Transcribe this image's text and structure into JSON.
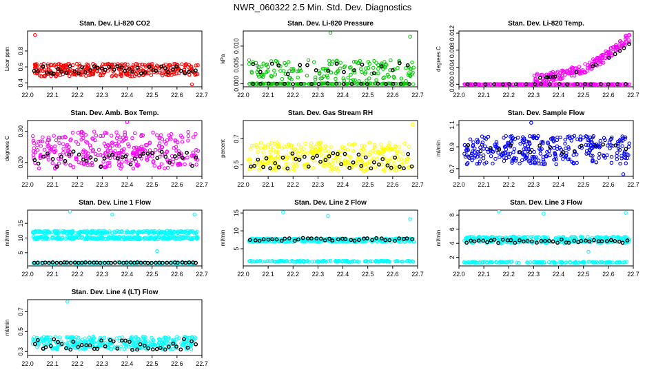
{
  "figure_title": "NWR_060322  2.5 Min. Std. Dev. Diagnostics",
  "chart_data": [
    {
      "id": "co2",
      "type": "scatter",
      "title": "Stan. Dev. Li-820 CO2",
      "ylabel": "Licor ppm",
      "color": "#ff0000",
      "xlim": [
        22.0,
        22.7
      ],
      "ylim": [
        0.35,
        1.05
      ],
      "xticks": [
        22.0,
        22.1,
        22.2,
        22.3,
        22.4,
        22.5,
        22.6,
        22.7
      ],
      "yticks": [
        {
          "v": 0.4,
          "label": "0.4"
        },
        {
          "v": 0.6,
          "label": "0.6"
        },
        {
          "v": 0.8,
          "label": "0.8"
        }
      ],
      "bands": [
        {
          "v": 0.56,
          "spread": 0.08,
          "n": 330
        }
      ],
      "trend": "flat",
      "outliers": [
        {
          "x": 22.03,
          "y": 1.0
        },
        {
          "x": 22.66,
          "y": 0.38
        }
      ],
      "dark": [
        {
          "y": 0.56,
          "spread": 0.05,
          "n": 42
        }
      ]
    },
    {
      "id": "pressure",
      "type": "scatter",
      "title": "Stan. Dev. Li-820 Pressure",
      "ylabel": "kPa",
      "color": "#00cc00",
      "xlim": [
        22.0,
        22.7
      ],
      "ylim": [
        -0.0008,
        0.014
      ],
      "xticks": [
        22.0,
        22.1,
        22.2,
        22.3,
        22.4,
        22.5,
        22.6,
        22.7
      ],
      "yticks": [
        {
          "v": 0.0,
          "label": "0.000"
        },
        {
          "v": 0.005,
          "label": "0.005"
        },
        {
          "v": 0.01,
          "label": "0.010"
        }
      ],
      "bands": [
        {
          "v": 0.0,
          "spread": 0.0001,
          "n": 170
        },
        {
          "v": 0.0035,
          "spread": 0.0028,
          "n": 160
        }
      ],
      "trend": "flat",
      "outliers": [
        {
          "x": 22.35,
          "y": 0.0135
        },
        {
          "x": 22.67,
          "y": 0.0125
        }
      ],
      "dark": [
        {
          "y": 0.0,
          "spread": 0.0001,
          "n": 20
        },
        {
          "y": 0.004,
          "spread": 0.0015,
          "n": 18
        }
      ]
    },
    {
      "id": "temp",
      "type": "scatter",
      "title": "Stan. Dev. Li-820 Temp.",
      "ylabel": "degrees C",
      "color": "#ff00ff",
      "xlim": [
        22.0,
        22.7
      ],
      "ylim": [
        -0.0006,
        0.0125
      ],
      "xticks": [
        22.0,
        22.1,
        22.2,
        22.3,
        22.4,
        22.5,
        22.6,
        22.7
      ],
      "yticks": [
        {
          "v": 0.0,
          "label": "0.000"
        },
        {
          "v": 0.004,
          "label": "0.004"
        },
        {
          "v": 0.008,
          "label": "0.008"
        },
        {
          "v": 0.012,
          "label": "0.012"
        }
      ],
      "bands": [
        {
          "v": 0.0,
          "spread": 5e-05,
          "n": 240
        }
      ],
      "trend": "rise",
      "outliers": [],
      "dark": [
        {
          "y": 0.0,
          "spread": 5e-05,
          "n": 20
        }
      ]
    },
    {
      "id": "ambbox",
      "type": "scatter",
      "title": "Stan. Dev. Amb. Box Temp.",
      "ylabel": "degrees C",
      "color": "#ff00ff",
      "xlim": [
        22.0,
        22.7
      ],
      "ylim": [
        0.155,
        0.335
      ],
      "xticks": [
        22.0,
        22.1,
        22.2,
        22.3,
        22.4,
        22.5,
        22.6,
        22.7
      ],
      "yticks": [
        {
          "v": 0.2,
          "label": "0.20"
        },
        {
          "v": 0.3,
          "label": "0.30"
        }
      ],
      "bands": [
        {
          "v": 0.24,
          "spread": 0.06,
          "n": 330
        }
      ],
      "trend": "flat",
      "outliers": [
        {
          "x": 22.4,
          "y": 0.33
        }
      ],
      "dark": [
        {
          "y": 0.21,
          "spread": 0.025,
          "n": 38
        }
      ]
    },
    {
      "id": "rh",
      "type": "scatter",
      "title": "Stan. Dev. Gas Stream RH",
      "ylabel": "percent",
      "color": "#ffff00",
      "xlim": [
        22.0,
        22.7
      ],
      "ylim": [
        0.41,
        0.84
      ],
      "xticks": [
        22.0,
        22.1,
        22.2,
        22.3,
        22.4,
        22.5,
        22.6,
        22.7
      ],
      "yticks": [
        {
          "v": 0.5,
          "label": "0.5"
        },
        {
          "v": 0.7,
          "label": "0.7"
        }
      ],
      "bands": [
        {
          "v": 0.56,
          "spread": 0.11,
          "n": 330
        }
      ],
      "trend": "flat",
      "outliers": [
        {
          "x": 22.68,
          "y": 0.81
        }
      ],
      "dark": [
        {
          "y": 0.53,
          "spread": 0.06,
          "n": 40
        }
      ]
    },
    {
      "id": "sample",
      "type": "scatter",
      "title": "Stan. Dev. Sample Flow",
      "ylabel": "ml/min",
      "color": "#0000ff",
      "xlim": [
        22.0,
        22.7
      ],
      "ylim": [
        0.63,
        1.14
      ],
      "xticks": [
        22.0,
        22.1,
        22.2,
        22.3,
        22.4,
        22.5,
        22.6,
        22.7
      ],
      "yticks": [
        {
          "v": 0.7,
          "label": "0.7"
        },
        {
          "v": 0.9,
          "label": "0.9"
        },
        {
          "v": 1.1,
          "label": "1.1"
        }
      ],
      "bands": [
        {
          "v": 0.87,
          "spread": 0.13,
          "n": 330
        }
      ],
      "trend": "flat",
      "outliers": [
        {
          "x": 22.29,
          "y": 1.12
        },
        {
          "x": 22.66,
          "y": 0.65
        }
      ],
      "dark": [
        {
          "y": 0.89,
          "spread": 0.04,
          "n": 16
        }
      ]
    },
    {
      "id": "line1",
      "type": "scatter",
      "title": "Stan. Dev. Line 1 Flow",
      "ylabel": "ml/min",
      "color": "#00ffff",
      "xlim": [
        22.0,
        22.7
      ],
      "ylim": [
        0.5,
        19.5
      ],
      "xticks": [
        22.0,
        22.1,
        22.2,
        22.3,
        22.4,
        22.5,
        22.6,
        22.7
      ],
      "yticks": [
        {
          "v": 5,
          "label": "5"
        },
        {
          "v": 10,
          "label": "10"
        },
        {
          "v": 15,
          "label": "15"
        }
      ],
      "bands": [
        {
          "v": 12.0,
          "spread": 0.45,
          "n": 240
        },
        {
          "v": 10.0,
          "spread": 0.45,
          "n": 240
        },
        {
          "v": 1.5,
          "spread": 0.15,
          "n": 120
        }
      ],
      "trend": "flat",
      "outliers": [
        {
          "x": 22.17,
          "y": 19.0
        },
        {
          "x": 22.34,
          "y": 18.0
        },
        {
          "x": 22.67,
          "y": 18.0
        },
        {
          "x": 22.52,
          "y": 5.5
        }
      ],
      "dark": [
        {
          "y": 1.6,
          "spread": 0.1,
          "n": 45
        }
      ]
    },
    {
      "id": "line2",
      "type": "scatter",
      "title": "Stan. Dev. Line 2 Flow",
      "ylabel": "ml/min",
      "color": "#00ffff",
      "xlim": [
        22.0,
        22.7
      ],
      "ylim": [
        0.2,
        15.8
      ],
      "xticks": [
        22.0,
        22.1,
        22.2,
        22.3,
        22.4,
        22.5,
        22.6,
        22.7
      ],
      "yticks": [
        {
          "v": 5,
          "label": "5"
        },
        {
          "v": 10,
          "label": "10"
        },
        {
          "v": 15,
          "label": "15"
        }
      ],
      "bands": [
        {
          "v": 7.4,
          "spread": 0.5,
          "n": 330
        },
        {
          "v": 1.5,
          "spread": 0.15,
          "n": 140
        }
      ],
      "trend": "flat",
      "outliers": [
        {
          "x": 22.16,
          "y": 15.2
        },
        {
          "x": 22.34,
          "y": 14.2
        },
        {
          "x": 22.67,
          "y": 13.3
        }
      ],
      "dark": [
        {
          "y": 7.6,
          "spread": 0.4,
          "n": 38
        }
      ]
    },
    {
      "id": "line3",
      "type": "scatter",
      "title": "Stan. Dev. Line 3 Flow",
      "ylabel": "ml/min",
      "color": "#00ffff",
      "xlim": [
        22.0,
        22.7
      ],
      "ylim": [
        0.8,
        8.7
      ],
      "xticks": [
        22.0,
        22.1,
        22.2,
        22.3,
        22.4,
        22.5,
        22.6,
        22.7
      ],
      "yticks": [
        {
          "v": 2,
          "label": "2"
        },
        {
          "v": 4,
          "label": "4"
        },
        {
          "v": 6,
          "label": "6"
        },
        {
          "v": 8,
          "label": "8"
        }
      ],
      "bands": [
        {
          "v": 4.5,
          "spread": 0.45,
          "n": 330
        },
        {
          "v": 1.3,
          "spread": 0.1,
          "n": 140
        }
      ],
      "trend": "flat",
      "outliers": [
        {
          "x": 22.16,
          "y": 8.5
        },
        {
          "x": 22.34,
          "y": 8.2
        },
        {
          "x": 22.67,
          "y": 8.3
        },
        {
          "x": 22.52,
          "y": 2.8
        }
      ],
      "dark": [
        {
          "y": 4.3,
          "spread": 0.25,
          "n": 40
        }
      ]
    },
    {
      "id": "line4",
      "type": "scatter",
      "title": "Stan. Dev. Line 4 (LT) Flow",
      "ylabel": "ml/min",
      "color": "#00ffff",
      "xlim": [
        22.0,
        22.7
      ],
      "ylim": [
        0.26,
        0.82
      ],
      "xticks": [
        22.0,
        22.1,
        22.2,
        22.3,
        22.4,
        22.5,
        22.6,
        22.7
      ],
      "yticks": [
        {
          "v": 0.3,
          "label": "0.3"
        },
        {
          "v": 0.5,
          "label": "0.5"
        },
        {
          "v": 0.7,
          "label": "0.7"
        }
      ],
      "bands": [
        {
          "v": 0.385,
          "spread": 0.065,
          "n": 330
        }
      ],
      "trend": "flat",
      "outliers": [
        {
          "x": 22.16,
          "y": 0.8
        }
      ],
      "dark": [
        {
          "y": 0.37,
          "spread": 0.055,
          "n": 42
        }
      ]
    }
  ]
}
